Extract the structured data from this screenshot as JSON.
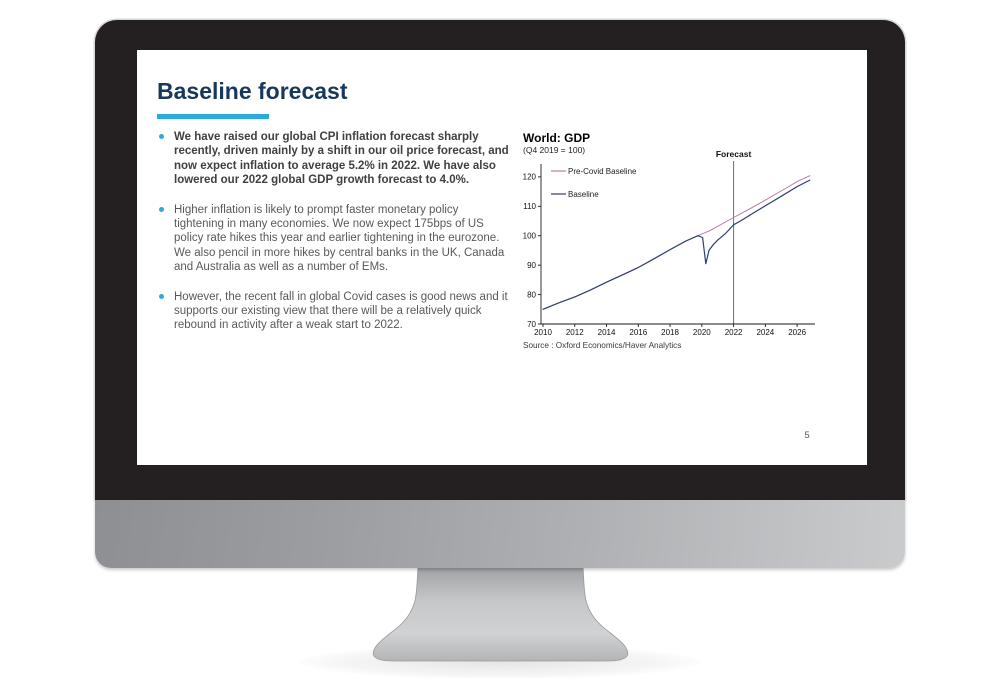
{
  "slide": {
    "title": "Baseline forecast",
    "accent_color": "#29abe2",
    "title_color": "#17375d",
    "bullets": [
      {
        "text": "We have raised our global CPI inflation forecast sharply recently, driven mainly by a shift in our oil price forecast, and now expect inflation to average 5.2% in 2022. We have also lowered our 2022 global GDP growth forecast to 4.0%.",
        "emphasis": true
      },
      {
        "text": "Higher inflation is likely to prompt faster monetary policy tightening in many economies. We now expect 175bps of US policy rate hikes this year and earlier tightening in the eurozone. We also pencil in more hikes by central banks in the UK, Canada and Australia as well as a number of EMs.",
        "emphasis": false
      },
      {
        "text": "However, the recent fall in global Covid cases is good news and it supports our existing view that there will be a relatively quick rebound in activity after a weak start to 2022.",
        "emphasis": false
      }
    ],
    "page_number": "5"
  },
  "chart_data": {
    "type": "line",
    "title": "World: GDP",
    "subtitle": "(Q4 2019 = 100)",
    "source": "Source : Oxford Economics/Haver Analytics",
    "forecast_label": "Forecast",
    "forecast_x": 2022,
    "xlim": [
      2010,
      2027
    ],
    "ylim": [
      70,
      122
    ],
    "xticks": [
      2010,
      2012,
      2014,
      2016,
      2018,
      2020,
      2022,
      2024,
      2026
    ],
    "yticks": [
      70,
      80,
      90,
      100,
      110,
      120
    ],
    "grid": false,
    "legend_position": "top-left-inside",
    "axis_color": "#1a1a1a",
    "forecast_line_color": "#6e6e6e",
    "series": [
      {
        "name": "Pre-Covid Baseline",
        "color": "#b97ba6",
        "points": [
          [
            2010,
            75
          ],
          [
            2011,
            77.2
          ],
          [
            2012,
            79.2
          ],
          [
            2013,
            81.6
          ],
          [
            2014,
            84.2
          ],
          [
            2015,
            86.7
          ],
          [
            2016,
            89.2
          ],
          [
            2017,
            92.2
          ],
          [
            2018,
            95.3
          ],
          [
            2019,
            98.2
          ],
          [
            2019.75,
            100
          ],
          [
            2020.5,
            101.7
          ],
          [
            2021,
            103.2
          ],
          [
            2022,
            106.2
          ],
          [
            2023,
            109.1
          ],
          [
            2024,
            112.1
          ],
          [
            2025,
            115.2
          ],
          [
            2026,
            118.4
          ],
          [
            2026.8,
            120.4
          ]
        ]
      },
      {
        "name": "Baseline",
        "color": "#2e3f72",
        "points": [
          [
            2010,
            75
          ],
          [
            2011,
            77.2
          ],
          [
            2012,
            79.2
          ],
          [
            2013,
            81.6
          ],
          [
            2014,
            84.2
          ],
          [
            2015,
            86.7
          ],
          [
            2016,
            89.2
          ],
          [
            2017,
            92.2
          ],
          [
            2018,
            95.3
          ],
          [
            2019,
            98.2
          ],
          [
            2019.75,
            100
          ],
          [
            2020.05,
            99.4
          ],
          [
            2020.25,
            90.5
          ],
          [
            2020.45,
            95
          ],
          [
            2020.7,
            96.8
          ],
          [
            2021,
            98.5
          ],
          [
            2021.5,
            100.8
          ],
          [
            2022,
            103.7
          ],
          [
            2022.5,
            105.2
          ],
          [
            2023,
            106.9
          ],
          [
            2024,
            110.2
          ],
          [
            2025,
            113.4
          ],
          [
            2026,
            116.7
          ],
          [
            2026.8,
            118.9
          ]
        ]
      }
    ]
  }
}
